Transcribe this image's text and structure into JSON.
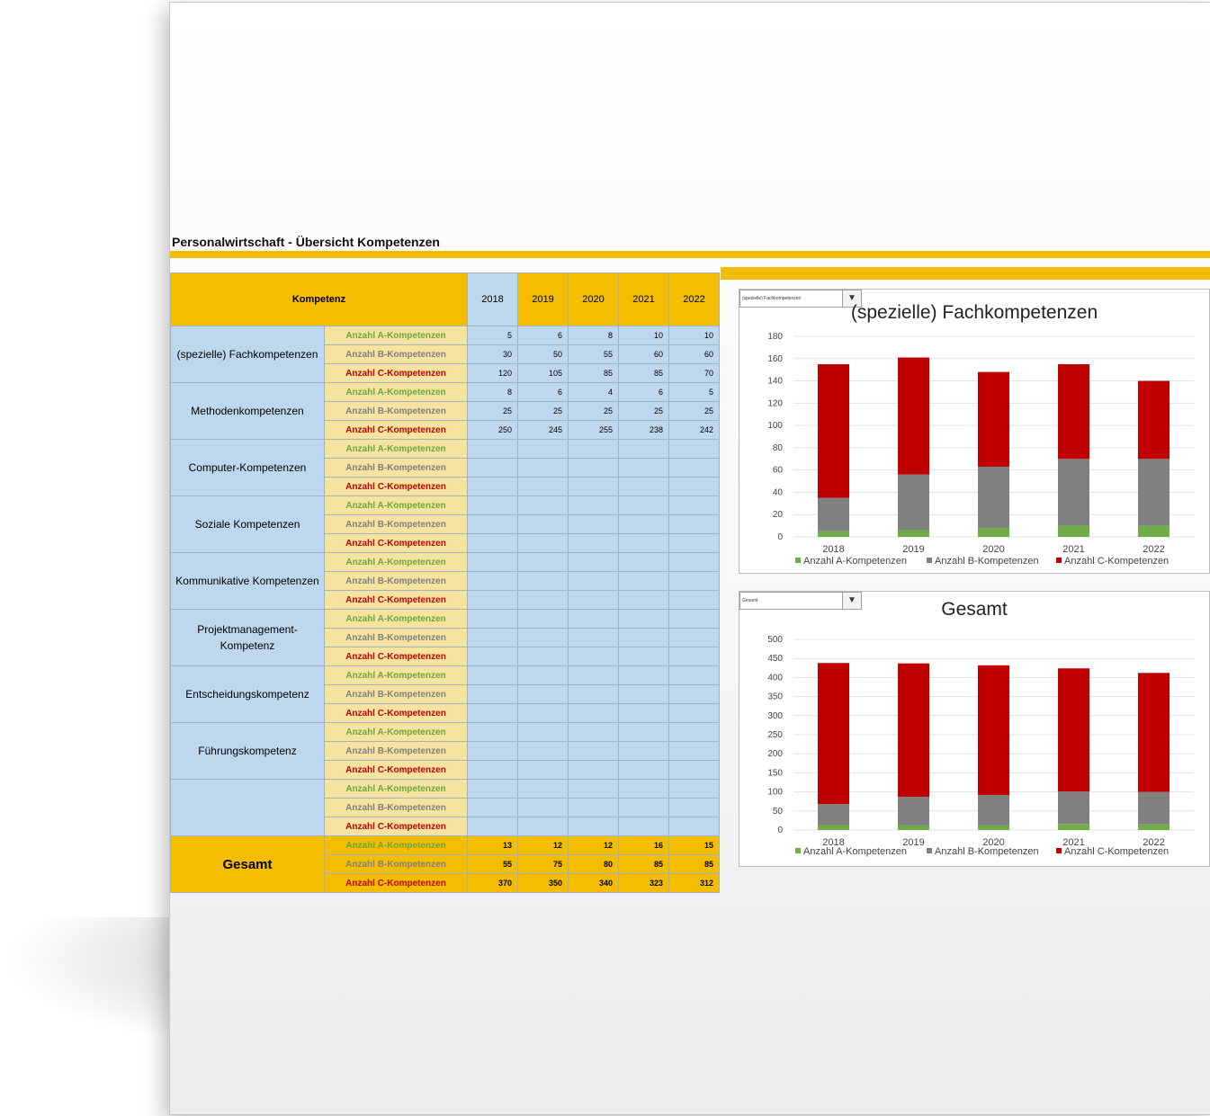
{
  "title": "Personalwirtschaft - Übersicht Kompetenzen",
  "table": {
    "header_label": "Kompetenz",
    "years": [
      "2018",
      "2019",
      "2020",
      "2021",
      "2022"
    ],
    "row_labels": [
      "Anzahl A-Kompetenzen",
      "Anzahl B-Kompetenzen",
      "Anzahl C-Kompetenzen"
    ],
    "categories": [
      {
        "name": "(spezielle) Fachkompetenzen",
        "values": [
          [
            "5",
            "6",
            "8",
            "10",
            "10"
          ],
          [
            "30",
            "50",
            "55",
            "60",
            "60"
          ],
          [
            "120",
            "105",
            "85",
            "85",
            "70"
          ]
        ]
      },
      {
        "name": "Methodenkompetenzen",
        "values": [
          [
            "8",
            "6",
            "4",
            "6",
            "5"
          ],
          [
            "25",
            "25",
            "25",
            "25",
            "25"
          ],
          [
            "250",
            "245",
            "255",
            "238",
            "242"
          ]
        ]
      },
      {
        "name": "Computer-Kompetenzen",
        "values": [
          [
            "",
            "",
            "",
            "",
            ""
          ],
          [
            "",
            "",
            "",
            "",
            ""
          ],
          [
            "",
            "",
            "",
            "",
            ""
          ]
        ]
      },
      {
        "name": "Soziale Kompetenzen",
        "values": [
          [
            "",
            "",
            "",
            "",
            ""
          ],
          [
            "",
            "",
            "",
            "",
            ""
          ],
          [
            "",
            "",
            "",
            "",
            ""
          ]
        ]
      },
      {
        "name": "Kommunikative Kompetenzen",
        "values": [
          [
            "",
            "",
            "",
            "",
            ""
          ],
          [
            "",
            "",
            "",
            "",
            ""
          ],
          [
            "",
            "",
            "",
            "",
            ""
          ]
        ]
      },
      {
        "name": "Projektmanagement-Kompetenz",
        "values": [
          [
            "",
            "",
            "",
            "",
            ""
          ],
          [
            "",
            "",
            "",
            "",
            ""
          ],
          [
            "",
            "",
            "",
            "",
            ""
          ]
        ]
      },
      {
        "name": "Entscheidungskompetenz",
        "values": [
          [
            "",
            "",
            "",
            "",
            ""
          ],
          [
            "",
            "",
            "",
            "",
            ""
          ],
          [
            "",
            "",
            "",
            "",
            ""
          ]
        ]
      },
      {
        "name": "Führungskompetenz",
        "values": [
          [
            "",
            "",
            "",
            "",
            ""
          ],
          [
            "",
            "",
            "",
            "",
            ""
          ],
          [
            "",
            "",
            "",
            "",
            ""
          ]
        ]
      },
      {
        "name": "",
        "values": [
          [
            "",
            "",
            "",
            "",
            ""
          ],
          [
            "",
            "",
            "",
            "",
            ""
          ],
          [
            "",
            "",
            "",
            "",
            ""
          ]
        ]
      }
    ],
    "total": {
      "name": "Gesamt",
      "values": [
        [
          "13",
          "12",
          "12",
          "16",
          "15"
        ],
        [
          "55",
          "75",
          "80",
          "85",
          "85"
        ],
        [
          "370",
          "350",
          "340",
          "323",
          "312"
        ]
      ]
    }
  },
  "colors": {
    "a": "#70ad47",
    "b": "#808080",
    "c": "#c00000",
    "accent": "#f4bd00",
    "cell_blue": "#bdd7ee",
    "label_yellow": "#f7e3a0"
  },
  "chart_data": [
    {
      "type": "bar",
      "stacked": true,
      "title": "(spezielle) Fachkompetenzen",
      "dropdown": "(spezielle) Fachkompetenzen",
      "categories": [
        "2018",
        "2019",
        "2020",
        "2021",
        "2022"
      ],
      "series": [
        {
          "name": "Anzahl A-Kompetenzen",
          "values": [
            5,
            6,
            8,
            10,
            10
          ],
          "color": "#70ad47"
        },
        {
          "name": "Anzahl B-Kompetenzen",
          "values": [
            30,
            50,
            55,
            60,
            60
          ],
          "color": "#808080"
        },
        {
          "name": "Anzahl C-Kompetenzen",
          "values": [
            120,
            105,
            85,
            85,
            70
          ],
          "color": "#c00000"
        }
      ],
      "ylim": [
        0,
        180
      ],
      "yticks": [
        "0",
        "20",
        "40",
        "60",
        "80",
        "100",
        "120",
        "140",
        "160",
        "180"
      ],
      "legend": "bottom",
      "grid": true
    },
    {
      "type": "bar",
      "stacked": true,
      "title": "Gesamt",
      "dropdown": "Gesamt",
      "categories": [
        "2018",
        "2019",
        "2020",
        "2021",
        "2022"
      ],
      "series": [
        {
          "name": "Anzahl A-Kompetenzen",
          "values": [
            13,
            12,
            12,
            16,
            15
          ],
          "color": "#70ad47"
        },
        {
          "name": "Anzahl B-Kompetenzen",
          "values": [
            55,
            75,
            80,
            85,
            85
          ],
          "color": "#808080"
        },
        {
          "name": "Anzahl C-Kompetenzen",
          "values": [
            370,
            350,
            340,
            323,
            312
          ],
          "color": "#c00000"
        }
      ],
      "ylim": [
        0,
        500
      ],
      "yticks": [
        "0",
        "50",
        "100",
        "150",
        "200",
        "250",
        "300",
        "350",
        "400",
        "450",
        "500"
      ],
      "legend": "bottom",
      "grid": true
    }
  ]
}
